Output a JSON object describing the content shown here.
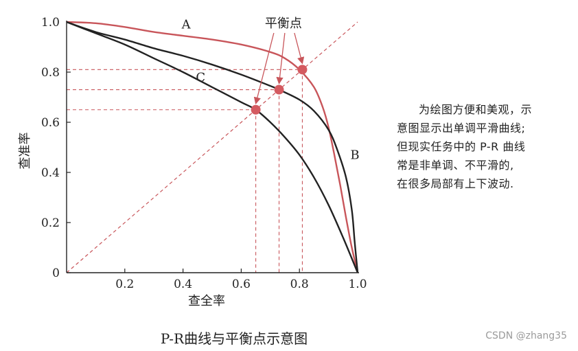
{
  "chart_data": {
    "type": "line",
    "title": "P-R曲线与平衡点示意图",
    "xlabel": "查全率",
    "ylabel": "查准率",
    "xlim": [
      0,
      1.0
    ],
    "ylim": [
      0,
      1.0
    ],
    "x_ticks": [
      "0.2",
      "0.4",
      "0.6",
      "0.8",
      "1.0"
    ],
    "y_ticks": [
      "0",
      "0.2",
      "0.4",
      "0.6",
      "0.8",
      "1.0"
    ],
    "grid": false,
    "series": [
      {
        "name": "A",
        "color": "#c8555a",
        "x": [
          0,
          0.1,
          0.2,
          0.3,
          0.4,
          0.5,
          0.6,
          0.7,
          0.75,
          0.8,
          0.85,
          0.88,
          0.9,
          0.92,
          0.94,
          0.96,
          0.98,
          1.0
        ],
        "y": [
          1.0,
          0.995,
          0.98,
          0.96,
          0.945,
          0.93,
          0.91,
          0.88,
          0.855,
          0.81,
          0.74,
          0.66,
          0.58,
          0.47,
          0.35,
          0.22,
          0.1,
          0
        ]
      },
      {
        "name": "B",
        "color": "#222222",
        "x": [
          0,
          0.1,
          0.2,
          0.3,
          0.4,
          0.5,
          0.6,
          0.7,
          0.73,
          0.8,
          0.85,
          0.9,
          0.93,
          0.96,
          0.98,
          0.99,
          1.0
        ],
        "y": [
          1.0,
          0.96,
          0.93,
          0.895,
          0.865,
          0.83,
          0.79,
          0.745,
          0.73,
          0.69,
          0.645,
          0.57,
          0.49,
          0.38,
          0.25,
          0.12,
          0
        ]
      },
      {
        "name": "C",
        "color": "#222222",
        "x": [
          0,
          0.1,
          0.2,
          0.3,
          0.4,
          0.5,
          0.6,
          0.65,
          0.7,
          0.75,
          0.8,
          0.85,
          0.9,
          0.95,
          1.0
        ],
        "y": [
          1.0,
          0.955,
          0.91,
          0.855,
          0.8,
          0.74,
          0.68,
          0.65,
          0.6,
          0.54,
          0.47,
          0.38,
          0.27,
          0.14,
          0
        ]
      }
    ],
    "reference_line": {
      "x": [
        0,
        1.0
      ],
      "y": [
        0,
        1.0
      ],
      "style": "dashed",
      "color": "#c8555a"
    },
    "break_even_points": [
      {
        "series": "C",
        "x": 0.65,
        "y": 0.65
      },
      {
        "series": "B",
        "x": 0.73,
        "y": 0.73
      },
      {
        "series": "A",
        "x": 0.81,
        "y": 0.81
      }
    ],
    "point_color": "#d45a60",
    "annotation": "平衡点"
  },
  "note_lines": [
    "为绘图方便和美观，示",
    "意图显示出单调平滑曲线;",
    "但现实任务中的 P-R 曲线",
    "常是非单调、不平滑的,",
    "在很多局部有上下波动."
  ],
  "watermark": "CSDN @zhang35"
}
